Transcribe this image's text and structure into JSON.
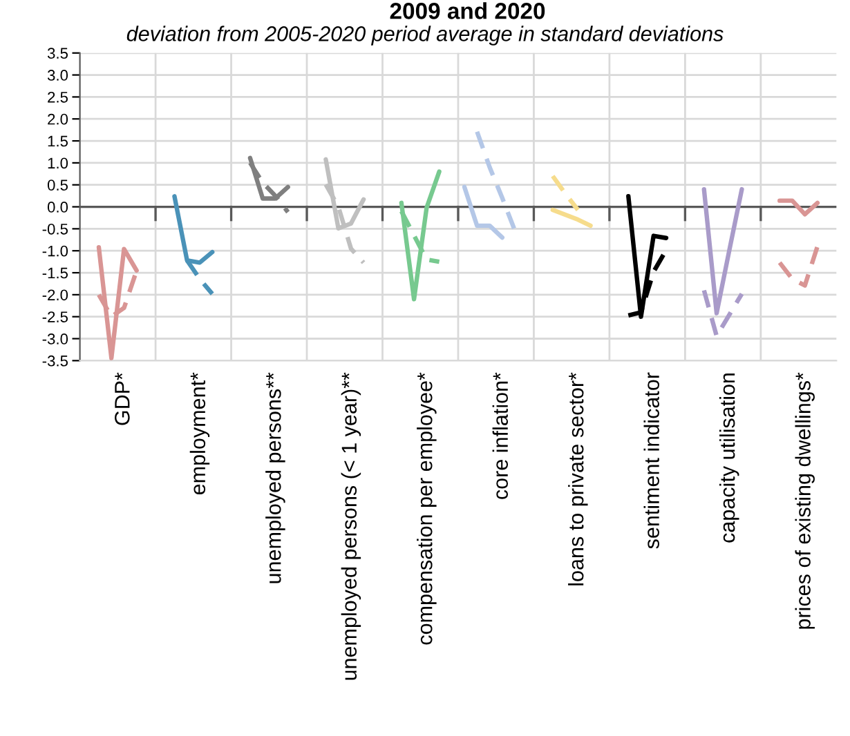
{
  "chart_data": {
    "type": "line",
    "title": "2009 and 2020",
    "subtitle": "deviation from 2005-2020 period average in standard deviations",
    "categories": [
      null,
      null,
      null,
      "GDP*",
      null,
      null,
      null,
      null,
      null,
      "employment*",
      null,
      null,
      null,
      null,
      null,
      "unemployed persons**",
      null,
      null,
      null,
      null,
      null,
      "unemployed persons (< 1 year)**",
      null,
      null,
      null,
      null,
      null,
      "compensation per employee*",
      null,
      null,
      null,
      null,
      null,
      "core inflation*",
      null,
      null,
      null,
      null,
      null,
      "loans to private sector*",
      null,
      null,
      null,
      null,
      null,
      "sentiment indicator",
      null,
      null,
      null,
      null,
      null,
      "capacity utilisation",
      null,
      null,
      null,
      null,
      null,
      "prices of existing dwellings*",
      null,
      null
    ],
    "ylim": [
      -3.5,
      3.5
    ],
    "yticks": [
      3.5,
      {
        "value": 3,
        "label": "3.0"
      },
      2.5,
      {
        "value": 2,
        "label": "2.0"
      },
      1.5,
      {
        "value": 1,
        "label": "1.0"
      },
      0.5,
      {
        "value": 0,
        "label": "0.0"
      },
      -0.5,
      {
        "value": -1,
        "label": "-1.0"
      },
      -1.5,
      {
        "value": -2,
        "label": "-2.0"
      },
      -2.5,
      {
        "value": -3,
        "label": "-3.0"
      },
      -3.5
    ],
    "grid": true,
    "marker": "none",
    "ref_lines": [
      {
        "axis": "y",
        "value": 0,
        "label": null,
        "color": "#595959"
      }
    ],
    "series": [
      {
        "color": "#d99594",
        "line_style": "solid",
        "values": [
          null,
          -0.92,
          -3.44,
          -0.96,
          -1.45,
          null,
          null,
          null,
          null,
          null,
          null,
          null,
          null,
          null,
          null,
          null,
          null,
          null,
          null,
          null,
          null,
          null,
          null,
          null,
          null,
          null,
          null,
          null,
          null,
          null,
          null,
          null,
          null,
          null,
          null,
          null,
          null,
          null,
          null,
          null,
          null,
          null,
          null,
          null,
          null,
          null,
          null,
          null,
          null,
          null,
          null,
          null,
          null,
          null,
          null,
          null,
          null,
          null,
          null,
          null
        ]
      },
      {
        "color": "#d99594",
        "line_style": "dashed",
        "values": [
          null,
          -2.0,
          -2.5,
          -2.3,
          -1.45,
          null,
          null,
          null,
          null,
          null,
          null,
          null,
          null,
          null,
          null,
          null,
          null,
          null,
          null,
          null,
          null,
          null,
          null,
          null,
          null,
          null,
          null,
          null,
          null,
          null,
          null,
          null,
          null,
          null,
          null,
          null,
          null,
          null,
          null,
          null,
          null,
          null,
          null,
          null,
          null,
          null,
          null,
          null,
          null,
          null,
          null,
          null,
          null,
          null,
          null,
          null,
          null,
          null,
          null,
          null
        ]
      },
      {
        "color": "#4a92b8",
        "line_style": "solid",
        "values": [
          null,
          null,
          null,
          null,
          null,
          null,
          null,
          0.24,
          -1.22,
          -1.27,
          -1.03,
          null,
          null,
          null,
          null,
          null,
          null,
          null,
          null,
          null,
          null,
          null,
          null,
          null,
          null,
          null,
          null,
          null,
          null,
          null,
          null,
          null,
          null,
          null,
          null,
          null,
          null,
          null,
          null,
          null,
          null,
          null,
          null,
          null,
          null,
          null,
          null,
          null,
          null,
          null,
          null,
          null,
          null,
          null,
          null,
          null,
          null,
          null,
          null,
          null
        ]
      },
      {
        "color": "#4a92b8",
        "line_style": "dashed",
        "values": [
          null,
          null,
          null,
          null,
          null,
          null,
          null,
          null,
          -1.22,
          -1.64,
          -1.98,
          null,
          null,
          null,
          null,
          null,
          null,
          null,
          null,
          null,
          null,
          null,
          null,
          null,
          null,
          null,
          null,
          null,
          null,
          null,
          null,
          null,
          null,
          null,
          null,
          null,
          null,
          null,
          null,
          null,
          null,
          null,
          null,
          null,
          null,
          null,
          null,
          null,
          null,
          null,
          null,
          null,
          null,
          null,
          null,
          null,
          null,
          null,
          null,
          null
        ]
      },
      {
        "color": "#7f7f7f",
        "line_style": "solid",
        "values": [
          null,
          null,
          null,
          null,
          null,
          null,
          null,
          null,
          null,
          null,
          null,
          null,
          null,
          1.11,
          0.19,
          0.19,
          0.45,
          null,
          null,
          null,
          null,
          null,
          null,
          null,
          null,
          null,
          null,
          null,
          null,
          null,
          null,
          null,
          null,
          null,
          null,
          null,
          null,
          null,
          null,
          null,
          null,
          null,
          null,
          null,
          null,
          null,
          null,
          null,
          null,
          null,
          null,
          null,
          null,
          null,
          null,
          null,
          null,
          null,
          null,
          null
        ]
      },
      {
        "color": "#7f7f7f",
        "line_style": "dashed",
        "values": [
          null,
          null,
          null,
          null,
          null,
          null,
          null,
          null,
          null,
          null,
          null,
          null,
          null,
          1.0,
          0.55,
          0.25,
          -0.12,
          null,
          null,
          null,
          null,
          null,
          null,
          null,
          null,
          null,
          null,
          null,
          null,
          null,
          null,
          null,
          null,
          null,
          null,
          null,
          null,
          null,
          null,
          null,
          null,
          null,
          null,
          null,
          null,
          null,
          null,
          null,
          null,
          null,
          null,
          null,
          null,
          null,
          null,
          null,
          null,
          null,
          null,
          null
        ]
      },
      {
        "color": "#bfbfbf",
        "line_style": "solid",
        "values": [
          null,
          null,
          null,
          null,
          null,
          null,
          null,
          null,
          null,
          null,
          null,
          null,
          null,
          null,
          null,
          null,
          null,
          null,
          null,
          1.08,
          -0.49,
          -0.38,
          0.17,
          null,
          null,
          null,
          null,
          null,
          null,
          null,
          null,
          null,
          null,
          null,
          null,
          null,
          null,
          null,
          null,
          null,
          null,
          null,
          null,
          null,
          null,
          null,
          null,
          null,
          null,
          null,
          null,
          null,
          null,
          null,
          null,
          null,
          null,
          null,
          null,
          null
        ]
      },
      {
        "color": "#bfbfbf",
        "line_style": "dashed",
        "values": [
          null,
          null,
          null,
          null,
          null,
          null,
          null,
          null,
          null,
          null,
          null,
          null,
          null,
          null,
          null,
          null,
          null,
          null,
          null,
          0.51,
          0.0,
          -0.95,
          -1.27,
          null,
          null,
          null,
          null,
          null,
          null,
          null,
          null,
          null,
          null,
          null,
          null,
          null,
          null,
          null,
          null,
          null,
          null,
          null,
          null,
          null,
          null,
          null,
          null,
          null,
          null,
          null,
          null,
          null,
          null,
          null,
          null,
          null,
          null,
          null,
          null,
          null
        ]
      },
      {
        "color": "#77c98f",
        "line_style": "solid",
        "values": [
          null,
          null,
          null,
          null,
          null,
          null,
          null,
          null,
          null,
          null,
          null,
          null,
          null,
          null,
          null,
          null,
          null,
          null,
          null,
          null,
          null,
          null,
          null,
          null,
          null,
          0.09,
          -2.1,
          -0.02,
          0.8,
          null,
          null,
          null,
          null,
          null,
          null,
          null,
          null,
          null,
          null,
          null,
          null,
          null,
          null,
          null,
          null,
          null,
          null,
          null,
          null,
          null,
          null,
          null,
          null,
          null,
          null,
          null,
          null,
          null,
          null,
          null
        ]
      },
      {
        "color": "#77c98f",
        "line_style": "dashed",
        "values": [
          null,
          null,
          null,
          null,
          null,
          null,
          null,
          null,
          null,
          null,
          null,
          null,
          null,
          null,
          null,
          null,
          null,
          null,
          null,
          null,
          null,
          null,
          null,
          null,
          null,
          -0.1,
          -0.65,
          -1.2,
          -1.25,
          null,
          null,
          null,
          null,
          null,
          null,
          null,
          null,
          null,
          null,
          null,
          null,
          null,
          null,
          null,
          null,
          null,
          null,
          null,
          null,
          null,
          null,
          null,
          null,
          null,
          null,
          null,
          null,
          null,
          null,
          null
        ]
      },
      {
        "color": "#b4c7e7",
        "line_style": "solid",
        "values": [
          null,
          null,
          null,
          null,
          null,
          null,
          null,
          null,
          null,
          null,
          null,
          null,
          null,
          null,
          null,
          null,
          null,
          null,
          null,
          null,
          null,
          null,
          null,
          null,
          null,
          null,
          null,
          null,
          null,
          null,
          0.45,
          -0.43,
          -0.43,
          -0.7,
          null,
          null,
          null,
          null,
          null,
          null,
          null,
          null,
          null,
          null,
          null,
          null,
          null,
          null,
          null,
          null,
          null,
          null,
          null,
          null,
          null,
          null,
          null,
          null,
          null,
          null
        ]
      },
      {
        "color": "#b4c7e7",
        "line_style": "dashed",
        "values": [
          null,
          null,
          null,
          null,
          null,
          null,
          null,
          null,
          null,
          null,
          null,
          null,
          null,
          null,
          null,
          null,
          null,
          null,
          null,
          null,
          null,
          null,
          null,
          null,
          null,
          null,
          null,
          null,
          null,
          null,
          null,
          1.71,
          0.9,
          0.2,
          -0.54,
          null,
          null,
          null,
          null,
          null,
          null,
          null,
          null,
          null,
          null,
          null,
          null,
          null,
          null,
          null,
          null,
          null,
          null,
          null,
          null,
          null,
          null,
          null,
          null,
          null
        ]
      },
      {
        "color": "#f6dc8c",
        "line_style": "solid",
        "values": [
          null,
          null,
          null,
          null,
          null,
          null,
          null,
          null,
          null,
          null,
          null,
          null,
          null,
          null,
          null,
          null,
          null,
          null,
          null,
          null,
          null,
          null,
          null,
          null,
          null,
          null,
          null,
          null,
          null,
          null,
          null,
          null,
          null,
          null,
          null,
          null,
          null,
          -0.07,
          -0.18,
          -0.29,
          -0.43,
          null,
          null,
          null,
          null,
          null,
          null,
          null,
          null,
          null,
          null,
          null,
          null,
          null,
          null,
          null,
          null,
          null,
          null,
          null
        ]
      },
      {
        "color": "#f6dc8c",
        "line_style": "dashed",
        "values": [
          null,
          null,
          null,
          null,
          null,
          null,
          null,
          null,
          null,
          null,
          null,
          null,
          null,
          null,
          null,
          null,
          null,
          null,
          null,
          null,
          null,
          null,
          null,
          null,
          null,
          null,
          null,
          null,
          null,
          null,
          null,
          null,
          null,
          null,
          null,
          null,
          null,
          0.7,
          0.3,
          -0.07,
          null,
          null,
          null,
          null,
          null,
          null,
          null,
          null,
          null,
          null,
          null,
          null,
          null,
          null,
          null,
          null,
          null,
          null,
          null,
          null
        ]
      },
      {
        "color": "#000000",
        "line_style": "solid",
        "values": [
          null,
          null,
          null,
          null,
          null,
          null,
          null,
          null,
          null,
          null,
          null,
          null,
          null,
          null,
          null,
          null,
          null,
          null,
          null,
          null,
          null,
          null,
          null,
          null,
          null,
          null,
          null,
          null,
          null,
          null,
          null,
          null,
          null,
          null,
          null,
          null,
          null,
          null,
          null,
          null,
          null,
          null,
          null,
          0.24,
          -2.5,
          -0.66,
          -0.71,
          null,
          null,
          null,
          null,
          null,
          null,
          null,
          null,
          null,
          null,
          null,
          null,
          null
        ]
      },
      {
        "color": "#000000",
        "line_style": "dashed",
        "values": [
          null,
          null,
          null,
          null,
          null,
          null,
          null,
          null,
          null,
          null,
          null,
          null,
          null,
          null,
          null,
          null,
          null,
          null,
          null,
          null,
          null,
          null,
          null,
          null,
          null,
          null,
          null,
          null,
          null,
          null,
          null,
          null,
          null,
          null,
          null,
          null,
          null,
          null,
          null,
          null,
          null,
          null,
          null,
          -2.47,
          -2.4,
          -1.48,
          -0.98,
          null,
          null,
          null,
          null,
          null,
          null,
          null,
          null,
          null,
          null,
          null,
          null,
          null
        ]
      },
      {
        "color": "#a99bc9",
        "line_style": "solid",
        "values": [
          null,
          null,
          null,
          null,
          null,
          null,
          null,
          null,
          null,
          null,
          null,
          null,
          null,
          null,
          null,
          null,
          null,
          null,
          null,
          null,
          null,
          null,
          null,
          null,
          null,
          null,
          null,
          null,
          null,
          null,
          null,
          null,
          null,
          null,
          null,
          null,
          null,
          null,
          null,
          null,
          null,
          null,
          null,
          null,
          null,
          null,
          null,
          null,
          null,
          0.4,
          -2.42,
          -1.0,
          0.4,
          null,
          null,
          null,
          null,
          null,
          null,
          null
        ]
      },
      {
        "color": "#a99bc9",
        "line_style": "dashed",
        "values": [
          null,
          null,
          null,
          null,
          null,
          null,
          null,
          null,
          null,
          null,
          null,
          null,
          null,
          null,
          null,
          null,
          null,
          null,
          null,
          null,
          null,
          null,
          null,
          null,
          null,
          null,
          null,
          null,
          null,
          null,
          null,
          null,
          null,
          null,
          null,
          null,
          null,
          null,
          null,
          null,
          null,
          null,
          null,
          null,
          null,
          null,
          null,
          null,
          null,
          -1.9,
          -2.94,
          -2.46,
          -1.98,
          null,
          null,
          null,
          null,
          null,
          null,
          null
        ]
      },
      {
        "color": "#d99594",
        "line_style": "solid",
        "values": [
          null,
          null,
          null,
          null,
          null,
          null,
          null,
          null,
          null,
          null,
          null,
          null,
          null,
          null,
          null,
          null,
          null,
          null,
          null,
          null,
          null,
          null,
          null,
          null,
          null,
          null,
          null,
          null,
          null,
          null,
          null,
          null,
          null,
          null,
          null,
          null,
          null,
          null,
          null,
          null,
          null,
          null,
          null,
          null,
          null,
          null,
          null,
          null,
          null,
          null,
          null,
          null,
          null,
          null,
          null,
          0.14,
          0.14,
          -0.17,
          0.09,
          null
        ]
      },
      {
        "color": "#d99594",
        "line_style": "dashed",
        "values": [
          null,
          null,
          null,
          null,
          null,
          null,
          null,
          null,
          null,
          null,
          null,
          null,
          null,
          null,
          null,
          null,
          null,
          null,
          null,
          null,
          null,
          null,
          null,
          null,
          null,
          null,
          null,
          null,
          null,
          null,
          null,
          null,
          null,
          null,
          null,
          null,
          null,
          null,
          null,
          null,
          null,
          null,
          null,
          null,
          null,
          null,
          null,
          null,
          null,
          null,
          null,
          null,
          null,
          null,
          null,
          -1.27,
          -1.64,
          -1.79,
          -0.9,
          null
        ]
      }
    ]
  }
}
